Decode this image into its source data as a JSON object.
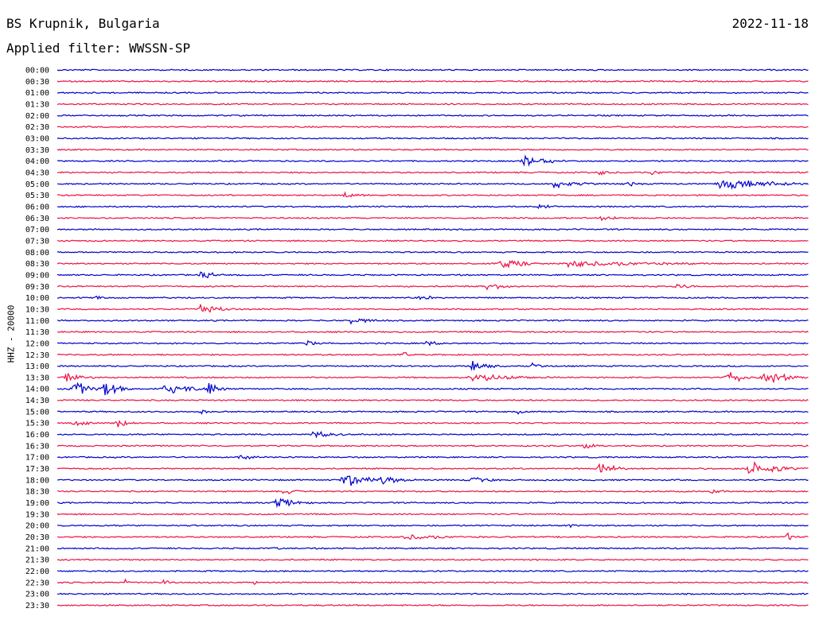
{
  "header": {
    "station": "BS Krupnik, Bulgaria",
    "date": "2022-11-18",
    "filter": "Applied filter: WWSSN-SP"
  },
  "chart_data": {
    "type": "line",
    "ylabel": "HHZ - 20000",
    "row_labels": [
      "00:00",
      "00:30",
      "01:00",
      "01:30",
      "02:00",
      "02:30",
      "03:00",
      "03:30",
      "04:00",
      "04:30",
      "05:00",
      "05:30",
      "06:00",
      "06:30",
      "07:00",
      "07:30",
      "08:00",
      "08:30",
      "09:00",
      "09:30",
      "10:00",
      "10:30",
      "11:00",
      "11:30",
      "12:00",
      "12:30",
      "13:00",
      "13:30",
      "14:00",
      "14:30",
      "15:00",
      "15:30",
      "16:00",
      "16:30",
      "17:00",
      "17:30",
      "18:00",
      "18:30",
      "19:00",
      "19:30",
      "20:00",
      "20:30",
      "21:00",
      "21:30",
      "22:00",
      "22:30",
      "23:00",
      "23:30"
    ],
    "colors": [
      "#0000cc",
      "#ee1144"
    ],
    "events": [
      {
        "row": 8,
        "pos": 0.62,
        "amp": 10,
        "len": 0.06
      },
      {
        "row": 9,
        "pos": 0.72,
        "amp": 4,
        "len": 0.05
      },
      {
        "row": 9,
        "pos": 0.79,
        "amp": 4,
        "len": 0.04
      },
      {
        "row": 10,
        "pos": 0.66,
        "amp": 6,
        "len": 0.08
      },
      {
        "row": 10,
        "pos": 0.76,
        "amp": 10,
        "len": 0.02
      },
      {
        "row": 10,
        "pos": 0.88,
        "amp": 7,
        "len": 0.18
      },
      {
        "row": 11,
        "pos": 0.38,
        "amp": 5,
        "len": 0.06
      },
      {
        "row": 12,
        "pos": 0.64,
        "amp": 4,
        "len": 0.04
      },
      {
        "row": 13,
        "pos": 0.72,
        "amp": 4,
        "len": 0.08
      },
      {
        "row": 17,
        "pos": 0.59,
        "amp": 11,
        "len": 0.05
      },
      {
        "row": 17,
        "pos": 0.68,
        "amp": 5,
        "len": 0.25
      },
      {
        "row": 18,
        "pos": 0.19,
        "amp": 6,
        "len": 0.05
      },
      {
        "row": 19,
        "pos": 0.57,
        "amp": 6,
        "len": 0.06
      },
      {
        "row": 19,
        "pos": 0.82,
        "amp": 4,
        "len": 0.06
      },
      {
        "row": 20,
        "pos": 0.05,
        "amp": 4,
        "len": 0.03
      },
      {
        "row": 20,
        "pos": 0.48,
        "amp": 4,
        "len": 0.06
      },
      {
        "row": 21,
        "pos": 0.19,
        "amp": 10,
        "len": 0.05
      },
      {
        "row": 22,
        "pos": 0.39,
        "amp": 5,
        "len": 0.06
      },
      {
        "row": 24,
        "pos": 0.33,
        "amp": 5,
        "len": 0.04
      },
      {
        "row": 24,
        "pos": 0.49,
        "amp": 5,
        "len": 0.04
      },
      {
        "row": 25,
        "pos": 0.46,
        "amp": 5,
        "len": 0.02
      },
      {
        "row": 26,
        "pos": 0.55,
        "amp": 8,
        "len": 0.05
      },
      {
        "row": 26,
        "pos": 0.63,
        "amp": 5,
        "len": 0.03
      },
      {
        "row": 27,
        "pos": 0.01,
        "amp": 7,
        "len": 0.06
      },
      {
        "row": 27,
        "pos": 0.55,
        "amp": 6,
        "len": 0.15
      },
      {
        "row": 27,
        "pos": 0.89,
        "amp": 12,
        "len": 0.04
      },
      {
        "row": 27,
        "pos": 0.94,
        "amp": 13,
        "len": 0.06
      },
      {
        "row": 28,
        "pos": 0.02,
        "amp": 12,
        "len": 0.06
      },
      {
        "row": 28,
        "pos": 0.06,
        "amp": 14,
        "len": 0.04
      },
      {
        "row": 28,
        "pos": 0.14,
        "amp": 8,
        "len": 0.08
      },
      {
        "row": 28,
        "pos": 0.2,
        "amp": 11,
        "len": 0.03
      },
      {
        "row": 30,
        "pos": 0.19,
        "amp": 8,
        "len": 0.02
      },
      {
        "row": 30,
        "pos": 0.61,
        "amp": 4,
        "len": 0.03
      },
      {
        "row": 31,
        "pos": 0.02,
        "amp": 6,
        "len": 0.05
      },
      {
        "row": 31,
        "pos": 0.08,
        "amp": 10,
        "len": 0.03
      },
      {
        "row": 32,
        "pos": 0.34,
        "amp": 6,
        "len": 0.06
      },
      {
        "row": 33,
        "pos": 0.7,
        "amp": 6,
        "len": 0.03
      },
      {
        "row": 34,
        "pos": 0.24,
        "amp": 4,
        "len": 0.06
      },
      {
        "row": 35,
        "pos": 0.72,
        "amp": 12,
        "len": 0.04
      },
      {
        "row": 35,
        "pos": 0.92,
        "amp": 11,
        "len": 0.08
      },
      {
        "row": 36,
        "pos": 0.38,
        "amp": 14,
        "len": 0.06
      },
      {
        "row": 36,
        "pos": 0.43,
        "amp": 7,
        "len": 0.06
      },
      {
        "row": 36,
        "pos": 0.55,
        "amp": 5,
        "len": 0.06
      },
      {
        "row": 37,
        "pos": 0.3,
        "amp": 5,
        "len": 0.04
      },
      {
        "row": 37,
        "pos": 0.87,
        "amp": 5,
        "len": 0.04
      },
      {
        "row": 38,
        "pos": 0.29,
        "amp": 8,
        "len": 0.06
      },
      {
        "row": 40,
        "pos": 0.68,
        "amp": 4,
        "len": 0.02
      },
      {
        "row": 41,
        "pos": 0.46,
        "amp": 5,
        "len": 0.12
      },
      {
        "row": 41,
        "pos": 0.97,
        "amp": 7,
        "len": 0.02
      },
      {
        "row": 42,
        "pos": 0.28,
        "amp": 4,
        "len": 0.03
      },
      {
        "row": 45,
        "pos": 0.09,
        "amp": 5,
        "len": 0.01
      },
      {
        "row": 45,
        "pos": 0.14,
        "amp": 13,
        "len": 0.01
      },
      {
        "row": 45,
        "pos": 0.26,
        "amp": 5,
        "len": 0.01
      }
    ]
  }
}
